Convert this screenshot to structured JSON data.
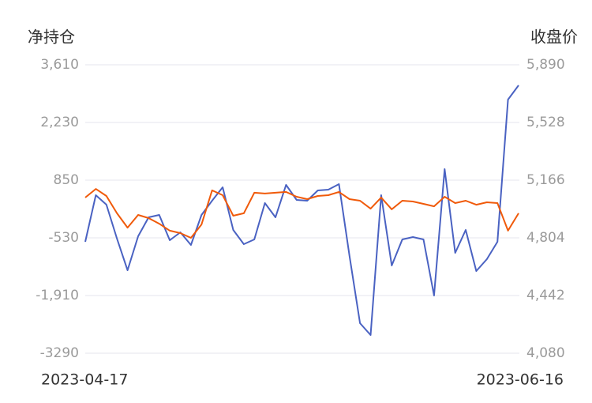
{
  "chart_data": {
    "type": "line",
    "y_label": "净持仓",
    "y2_label": "收盘价",
    "categories": [
      "2023-04-17",
      null,
      null,
      null,
      null,
      null,
      null,
      null,
      null,
      null,
      null,
      null,
      null,
      null,
      null,
      null,
      null,
      null,
      null,
      null,
      null,
      null,
      null,
      null,
      null,
      null,
      null,
      null,
      null,
      null,
      null,
      null,
      null,
      null,
      null,
      null,
      null,
      null,
      null,
      null,
      null,
      "2023-06-16"
    ],
    "series": [
      {
        "color": "#4a62c2",
        "values": [
          -624,
          491,
          264,
          -549,
          -1305,
          -492,
          -38,
          18,
          -587,
          -398,
          -700,
          18,
          359,
          680,
          -341,
          -681,
          -568,
          302,
          -38,
          737,
          377,
          359,
          604,
          623,
          756,
          -965,
          -2572,
          -2855,
          491,
          -1192,
          -568,
          -511,
          -568,
          -1910,
          1115,
          -889,
          -341,
          -1324,
          -1040,
          -624,
          2778,
          3118
        ]
      },
      {
        "color": "#f05a0a",
        "axis": "y2",
        "values": [
          5057,
          5111,
          5067,
          4958,
          4868,
          4948,
          4928,
          4893,
          4849,
          4834,
          4804,
          4888,
          5102,
          5072,
          4943,
          4958,
          5087,
          5082,
          5087,
          5092,
          5062,
          5047,
          5067,
          5072,
          5092,
          5047,
          5037,
          4987,
          5057,
          4983,
          5037,
          5032,
          5017,
          5002,
          5062,
          5022,
          5037,
          5012,
          5027,
          5022,
          4849,
          4958
        ]
      }
    ],
    "ylim": [
      -3290,
      3610
    ],
    "yticks": [
      -3290,
      {
        "value": -1910,
        "label": "-1,910"
      },
      -530,
      850,
      {
        "value": 2230,
        "label": "2,230"
      },
      {
        "value": 3610,
        "label": "3,610"
      }
    ],
    "y2lim": [
      4080,
      5890
    ],
    "y2ticks": [
      {
        "value": 4080,
        "label": "4,080"
      },
      {
        "value": 4442,
        "label": "4,442"
      },
      {
        "value": 4804,
        "label": "4,804"
      },
      {
        "value": 5166,
        "label": "5,166"
      },
      {
        "value": 5528,
        "label": "5,528"
      },
      {
        "value": 5890,
        "label": "5,890"
      }
    ],
    "grid": true
  }
}
